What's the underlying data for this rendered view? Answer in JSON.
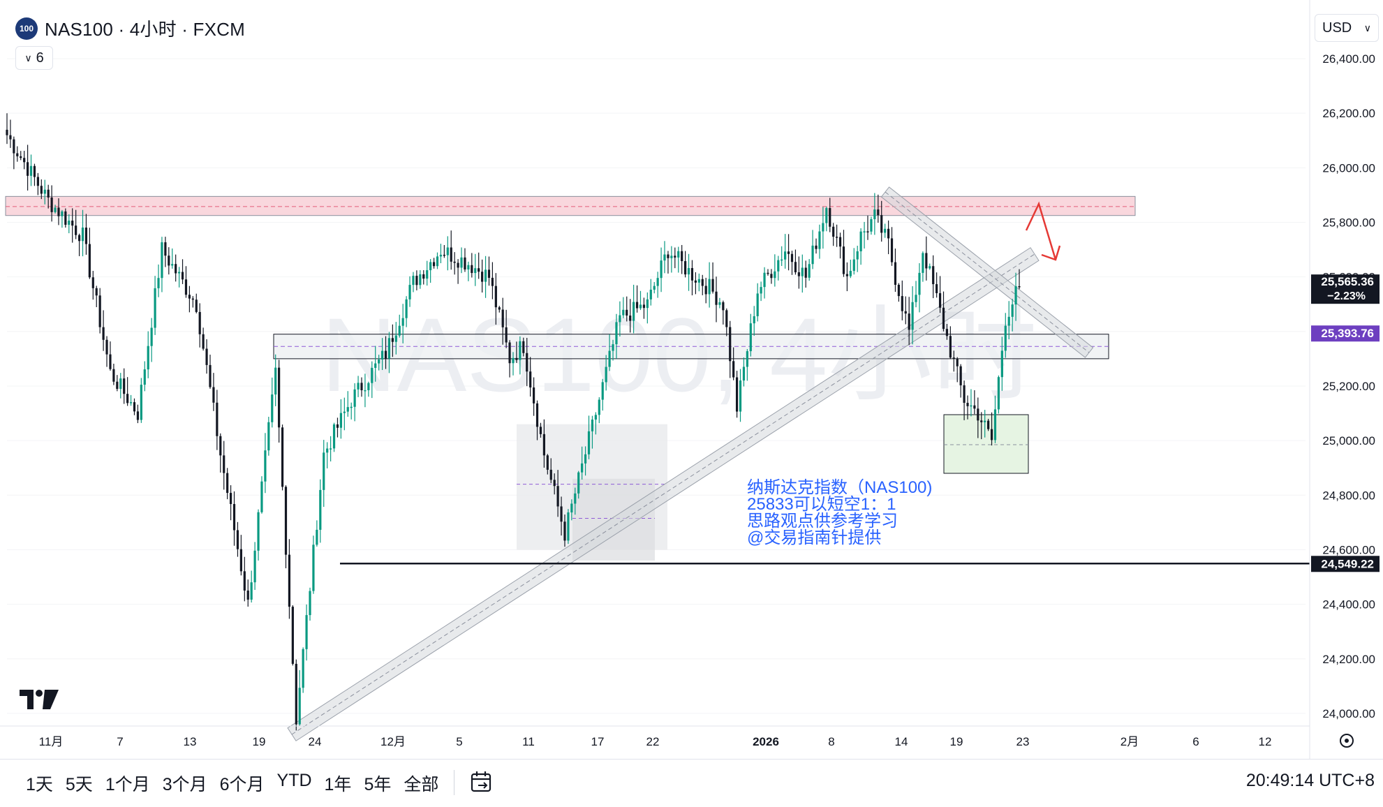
{
  "header": {
    "logo_text": "100",
    "title": "NAS100 · 4小时 · FXCM",
    "collapse_count": "6"
  },
  "currency": {
    "label": "USD"
  },
  "watermark": "NAS100, 4小时",
  "price_axis": {
    "ticks": [
      "26,400.00",
      "26,200.00",
      "26,000.00",
      "25,800.00",
      "25,600.00",
      "25,200.00",
      "25,000.00",
      "24,800.00",
      "24,600.00",
      "24,400.00",
      "24,200.00",
      "24,000.00"
    ],
    "labels": [
      {
        "price": "25,565.36",
        "change": "−2.23%",
        "color": "#131722"
      },
      {
        "price": "25,393.76",
        "color": "#6d3fc0"
      },
      {
        "price": "24,549.22",
        "color": "#131722"
      }
    ]
  },
  "time_axis": {
    "ticks": [
      "11月",
      "7",
      "13",
      "19",
      "24",
      "12月",
      "5",
      "11",
      "17",
      "22",
      "2026",
      "8",
      "14",
      "19",
      "23",
      "2月",
      "6",
      "12"
    ]
  },
  "annotation": [
    "纳斯达克指数（NAS100)",
    "25833可以短空1：1",
    "思路观点供参考学习",
    "@交易指南针提供"
  ],
  "colors": {
    "up": "#089981",
    "down": "#131722",
    "accent": "#2962ff",
    "resistance": "#f7c6cf",
    "support_box": "#e6f4e3",
    "arrow": "#e53935"
  },
  "ranges": [
    "1天",
    "5天",
    "1个月",
    "3个月",
    "6个月",
    "YTD",
    "1年",
    "5年",
    "全部"
  ],
  "clock": "20:49:14 UTC+8",
  "chart_data": {
    "type": "candlestick",
    "title": "NAS100 · 4小时 · FXCM",
    "ylim": [
      23900,
      26500
    ],
    "x_ticks": [
      "11月",
      "7",
      "13",
      "19",
      "24",
      "12月",
      "5",
      "11",
      "17",
      "22",
      "2026",
      "8",
      "14",
      "19",
      "23",
      "2月",
      "6",
      "12"
    ],
    "anchors": [
      [
        0,
        26120
      ],
      [
        12,
        25880
      ],
      [
        22,
        25750
      ],
      [
        30,
        25250
      ],
      [
        38,
        25100
      ],
      [
        45,
        25700
      ],
      [
        55,
        25500
      ],
      [
        62,
        24950
      ],
      [
        70,
        24400
      ],
      [
        78,
        25250
      ],
      [
        84,
        23980
      ],
      [
        92,
        24950
      ],
      [
        100,
        25150
      ],
      [
        110,
        25320
      ],
      [
        118,
        25580
      ],
      [
        126,
        25700
      ],
      [
        134,
        25650
      ],
      [
        140,
        25600
      ],
      [
        146,
        25300
      ],
      [
        150,
        25350
      ],
      [
        156,
        24950
      ],
      [
        162,
        24660
      ],
      [
        170,
        25050
      ],
      [
        178,
        25450
      ],
      [
        186,
        25500
      ],
      [
        192,
        25700
      ],
      [
        198,
        25620
      ],
      [
        204,
        25560
      ],
      [
        208,
        25500
      ],
      [
        212,
        25120
      ],
      [
        218,
        25550
      ],
      [
        226,
        25700
      ],
      [
        232,
        25600
      ],
      [
        238,
        25860
      ],
      [
        244,
        25600
      ],
      [
        248,
        25750
      ],
      [
        252,
        25820
      ],
      [
        256,
        25720
      ],
      [
        258,
        25600
      ],
      [
        262,
        25400
      ],
      [
        266,
        25700
      ],
      [
        270,
        25520
      ],
      [
        274,
        25330
      ],
      [
        278,
        25150
      ],
      [
        282,
        25100
      ],
      [
        286,
        25000
      ],
      [
        290,
        25450
      ],
      [
        294,
        25565
      ]
    ],
    "last_price": 25565.36,
    "change": "−2.23%",
    "levels": {
      "resistance_zone": [
        25825,
        25895
      ],
      "support_zone": [
        25300,
        25390
      ],
      "support_line": 24549.22,
      "marker": 25393.76
    },
    "annotation_lines": [
      "纳斯达克指数（NAS100)",
      "25833可以短空1：1",
      "思路观点供参考学习",
      "@交易指南针提供"
    ]
  }
}
